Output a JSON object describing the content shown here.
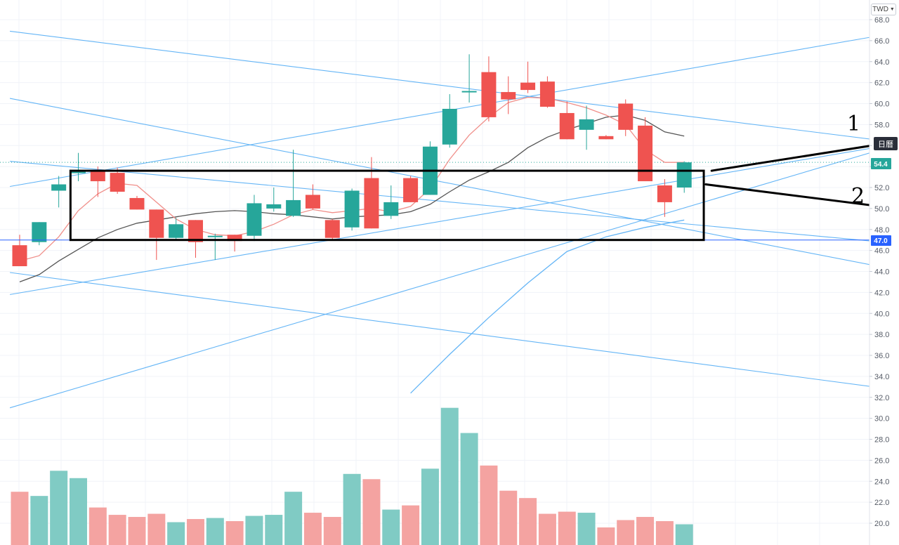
{
  "currency_selector": {
    "label": "TWD"
  },
  "period_badge": {
    "label": "日曆"
  },
  "last_price_label": "54.4",
  "horizontal_level_label": "47.0",
  "annotations": [
    {
      "text": "1"
    },
    {
      "text": "2"
    }
  ],
  "colors": {
    "up": "#26a69a",
    "down": "#ef5350",
    "up_volume": "#80cbc4",
    "down_volume": "#f4a3a1",
    "ma_fast": "#f08f8a",
    "ma_slow": "#555555",
    "trendline": "#64b5f6",
    "level_line": "#2962ff",
    "box": "#000000"
  },
  "chart_data": {
    "type": "candlestick",
    "title": "",
    "currency": "TWD",
    "ylim": [
      19,
      68.8
    ],
    "y_ticks": [
      68.0,
      66.0,
      64.0,
      62.0,
      60.0,
      58.0,
      56.0,
      54.0,
      52.0,
      50.0,
      48.0,
      46.0,
      44.0,
      42.0,
      40.0,
      38.0,
      36.0,
      34.0,
      32.0,
      30.0,
      28.0,
      26.0,
      24.0,
      22.0,
      20.0
    ],
    "x_range": [
      -0.5,
      45.3
    ],
    "candles": [
      {
        "i": 0,
        "o": 46.5,
        "h": 47.5,
        "l": 44.5,
        "c": 44.5
      },
      {
        "i": 1,
        "o": 46.8,
        "h": 48.7,
        "l": 46.5,
        "c": 48.7
      },
      {
        "i": 2,
        "o": 51.7,
        "h": 53.1,
        "l": 50.1,
        "c": 52.3
      },
      {
        "i": 3,
        "o": 53.4,
        "h": 55.3,
        "l": 52.6,
        "c": 53.5
      },
      {
        "i": 4,
        "o": 53.6,
        "h": 54.0,
        "l": 51.1,
        "c": 52.6
      },
      {
        "i": 5,
        "o": 53.4,
        "h": 53.9,
        "l": 51.4,
        "c": 51.6
      },
      {
        "i": 6,
        "o": 51.0,
        "h": 51.2,
        "l": 49.9,
        "c": 49.9
      },
      {
        "i": 7,
        "o": 49.9,
        "h": 49.9,
        "l": 45.1,
        "c": 47.2
      },
      {
        "i": 8,
        "o": 47.2,
        "h": 49.1,
        "l": 47.0,
        "c": 48.5
      },
      {
        "i": 9,
        "o": 48.9,
        "h": 48.9,
        "l": 45.3,
        "c": 46.8
      },
      {
        "i": 10,
        "o": 47.3,
        "h": 47.6,
        "l": 45.1,
        "c": 47.4
      },
      {
        "i": 11,
        "o": 47.5,
        "h": 47.5,
        "l": 45.9,
        "c": 46.9
      },
      {
        "i": 12,
        "o": 47.4,
        "h": 51.3,
        "l": 46.9,
        "c": 50.5
      },
      {
        "i": 13,
        "o": 50.0,
        "h": 52.0,
        "l": 49.7,
        "c": 50.4
      },
      {
        "i": 14,
        "o": 49.3,
        "h": 55.6,
        "l": 49.2,
        "c": 50.8
      },
      {
        "i": 15,
        "o": 51.3,
        "h": 52.3,
        "l": 49.9,
        "c": 50.0
      },
      {
        "i": 16,
        "o": 48.9,
        "h": 49.0,
        "l": 47.0,
        "c": 47.2
      },
      {
        "i": 17,
        "o": 48.2,
        "h": 51.9,
        "l": 47.9,
        "c": 51.7
      },
      {
        "i": 18,
        "o": 52.9,
        "h": 54.9,
        "l": 48.1,
        "c": 48.1
      },
      {
        "i": 19,
        "o": 49.3,
        "h": 52.2,
        "l": 49.0,
        "c": 50.6
      },
      {
        "i": 20,
        "o": 52.9,
        "h": 53.1,
        "l": 50.6,
        "c": 50.6
      },
      {
        "i": 21,
        "o": 51.3,
        "h": 56.4,
        "l": 51.3,
        "c": 55.9
      },
      {
        "i": 22,
        "o": 56.1,
        "h": 60.9,
        "l": 55.8,
        "c": 59.5
      },
      {
        "i": 23,
        "o": 61.1,
        "h": 64.7,
        "l": 60.1,
        "c": 61.2
      },
      {
        "i": 24,
        "o": 63.0,
        "h": 64.5,
        "l": 58.3,
        "c": 58.7
      },
      {
        "i": 25,
        "o": 61.1,
        "h": 62.6,
        "l": 59.0,
        "c": 60.4
      },
      {
        "i": 26,
        "o": 62.0,
        "h": 64.0,
        "l": 61.0,
        "c": 61.3
      },
      {
        "i": 27,
        "o": 62.1,
        "h": 62.6,
        "l": 59.6,
        "c": 59.7
      },
      {
        "i": 28,
        "o": 59.1,
        "h": 60.2,
        "l": 56.6,
        "c": 56.6
      },
      {
        "i": 29,
        "o": 57.5,
        "h": 59.8,
        "l": 55.6,
        "c": 58.5
      },
      {
        "i": 30,
        "o": 56.9,
        "h": 57.0,
        "l": 56.6,
        "c": 56.6
      },
      {
        "i": 31,
        "o": 60.0,
        "h": 60.4,
        "l": 56.9,
        "c": 57.5
      },
      {
        "i": 32,
        "o": 57.9,
        "h": 58.7,
        "l": 52.6,
        "c": 52.6
      },
      {
        "i": 33,
        "o": 52.2,
        "h": 52.8,
        "l": 49.2,
        "c": 50.6
      },
      {
        "i": 34,
        "o": 52.0,
        "h": 54.5,
        "l": 51.5,
        "c": 54.4
      }
    ],
    "volume": [
      {
        "i": 0,
        "v": 23.0
      },
      {
        "i": 1,
        "v": 22.6
      },
      {
        "i": 2,
        "v": 25.0
      },
      {
        "i": 3,
        "v": 24.3
      },
      {
        "i": 4,
        "v": 21.5
      },
      {
        "i": 5,
        "v": 20.8
      },
      {
        "i": 6,
        "v": 20.6
      },
      {
        "i": 7,
        "v": 20.9
      },
      {
        "i": 8,
        "v": 20.1
      },
      {
        "i": 9,
        "v": 20.4
      },
      {
        "i": 10,
        "v": 20.5
      },
      {
        "i": 11,
        "v": 20.2
      },
      {
        "i": 12,
        "v": 20.7
      },
      {
        "i": 13,
        "v": 20.8
      },
      {
        "i": 14,
        "v": 23.0
      },
      {
        "i": 15,
        "v": 21.0
      },
      {
        "i": 16,
        "v": 20.6
      },
      {
        "i": 17,
        "v": 24.7
      },
      {
        "i": 18,
        "v": 24.2
      },
      {
        "i": 19,
        "v": 21.3
      },
      {
        "i": 20,
        "v": 21.7
      },
      {
        "i": 21,
        "v": 25.2
      },
      {
        "i": 22,
        "v": 31.0
      },
      {
        "i": 23,
        "v": 28.6
      },
      {
        "i": 24,
        "v": 25.5
      },
      {
        "i": 25,
        "v": 23.1
      },
      {
        "i": 26,
        "v": 22.4
      },
      {
        "i": 27,
        "v": 20.9
      },
      {
        "i": 28,
        "v": 21.1
      },
      {
        "i": 29,
        "v": 21.0
      },
      {
        "i": 30,
        "v": 19.6
      },
      {
        "i": 31,
        "v": 20.3
      },
      {
        "i": 32,
        "v": 20.6
      },
      {
        "i": 33,
        "v": 20.2
      },
      {
        "i": 34,
        "v": 19.9
      }
    ],
    "ma_fast": [
      [
        0,
        45.0
      ],
      [
        1,
        45.5
      ],
      [
        2,
        47.3
      ],
      [
        3,
        49.8
      ],
      [
        4,
        51.4
      ],
      [
        5,
        52.4
      ],
      [
        6,
        52.2
      ],
      [
        7,
        50.6
      ],
      [
        8,
        49.0
      ],
      [
        9,
        48.0
      ],
      [
        10,
        47.5
      ],
      [
        11,
        47.4
      ],
      [
        12,
        47.8
      ],
      [
        13,
        48.5
      ],
      [
        14,
        49.4
      ],
      [
        15,
        49.9
      ],
      [
        16,
        49.6
      ],
      [
        17,
        49.8
      ],
      [
        18,
        50.0
      ],
      [
        19,
        49.7
      ],
      [
        20,
        50.2
      ],
      [
        21,
        51.9
      ],
      [
        22,
        54.7
      ],
      [
        23,
        57.0
      ],
      [
        24,
        58.7
      ],
      [
        25,
        60.1
      ],
      [
        26,
        60.6
      ],
      [
        27,
        60.5
      ],
      [
        28,
        60.1
      ],
      [
        29,
        59.6
      ],
      [
        30,
        58.9
      ],
      [
        31,
        58.0
      ],
      [
        32,
        55.6
      ],
      [
        33,
        54.4
      ],
      [
        34,
        54.4
      ]
    ],
    "ma_slow": [
      [
        0,
        43.0
      ],
      [
        1,
        43.7
      ],
      [
        2,
        45.0
      ],
      [
        3,
        46.1
      ],
      [
        4,
        47.2
      ],
      [
        5,
        48.0
      ],
      [
        6,
        48.6
      ],
      [
        7,
        48.9
      ],
      [
        8,
        49.2
      ],
      [
        9,
        49.5
      ],
      [
        10,
        49.7
      ],
      [
        11,
        49.8
      ],
      [
        12,
        49.7
      ],
      [
        13,
        49.5
      ],
      [
        14,
        49.4
      ],
      [
        15,
        49.2
      ],
      [
        16,
        49.0
      ],
      [
        17,
        49.2
      ],
      [
        18,
        49.3
      ],
      [
        19,
        49.4
      ],
      [
        20,
        49.7
      ],
      [
        21,
        50.4
      ],
      [
        22,
        51.6
      ],
      [
        23,
        52.7
      ],
      [
        24,
        53.5
      ],
      [
        25,
        54.4
      ],
      [
        26,
        55.8
      ],
      [
        27,
        56.8
      ],
      [
        28,
        57.5
      ],
      [
        29,
        58.1
      ],
      [
        30,
        58.7
      ],
      [
        31,
        58.9
      ],
      [
        32,
        58.4
      ],
      [
        33,
        57.3
      ],
      [
        34,
        56.9
      ]
    ],
    "ma_support": [
      [
        20,
        32.4
      ],
      [
        22,
        36.1
      ],
      [
        24,
        39.6
      ],
      [
        26,
        42.9
      ],
      [
        28,
        45.9
      ],
      [
        30,
        47.3
      ],
      [
        32,
        48.2
      ],
      [
        34,
        48.9
      ]
    ],
    "trendlines": [
      {
        "x1": -0.5,
        "y1": 66.9,
        "x2": 45.3,
        "y2": 56.2
      },
      {
        "x1": -0.5,
        "y1": 60.5,
        "x2": 45.3,
        "y2": 44.0
      },
      {
        "x1": -0.5,
        "y1": 43.9,
        "x2": 45.3,
        "y2": 32.6
      },
      {
        "x1": -0.5,
        "y1": 52.1,
        "x2": 45.3,
        "y2": 66.9
      },
      {
        "x1": -0.5,
        "y1": 41.8,
        "x2": 45.3,
        "y2": 56.3
      },
      {
        "x1": -0.5,
        "y1": 31.0,
        "x2": 45.3,
        "y2": 56.3
      },
      {
        "x1": -0.5,
        "y1": 54.5,
        "x2": 45.3,
        "y2": 46.6
      }
    ],
    "horizontal_level": 47.0,
    "last_price": 54.4,
    "dotted_price_line": 54.4,
    "annotation_box": {
      "x1": 2.6,
      "y1": 53.6,
      "x2": 35.0,
      "y2": 47.0
    },
    "annotation_arrows": [
      {
        "x1": 35.4,
        "y1": 53.6,
        "x2": 45.3,
        "y2": 56.5
      },
      {
        "x1": 35.1,
        "y1": 52.3,
        "x2": 45.3,
        "y2": 49.9
      }
    ],
    "annotation_labels": [
      {
        "x": 43.3,
        "y": 58.2
      },
      {
        "x": 43.5,
        "y": 50.7
      }
    ]
  }
}
